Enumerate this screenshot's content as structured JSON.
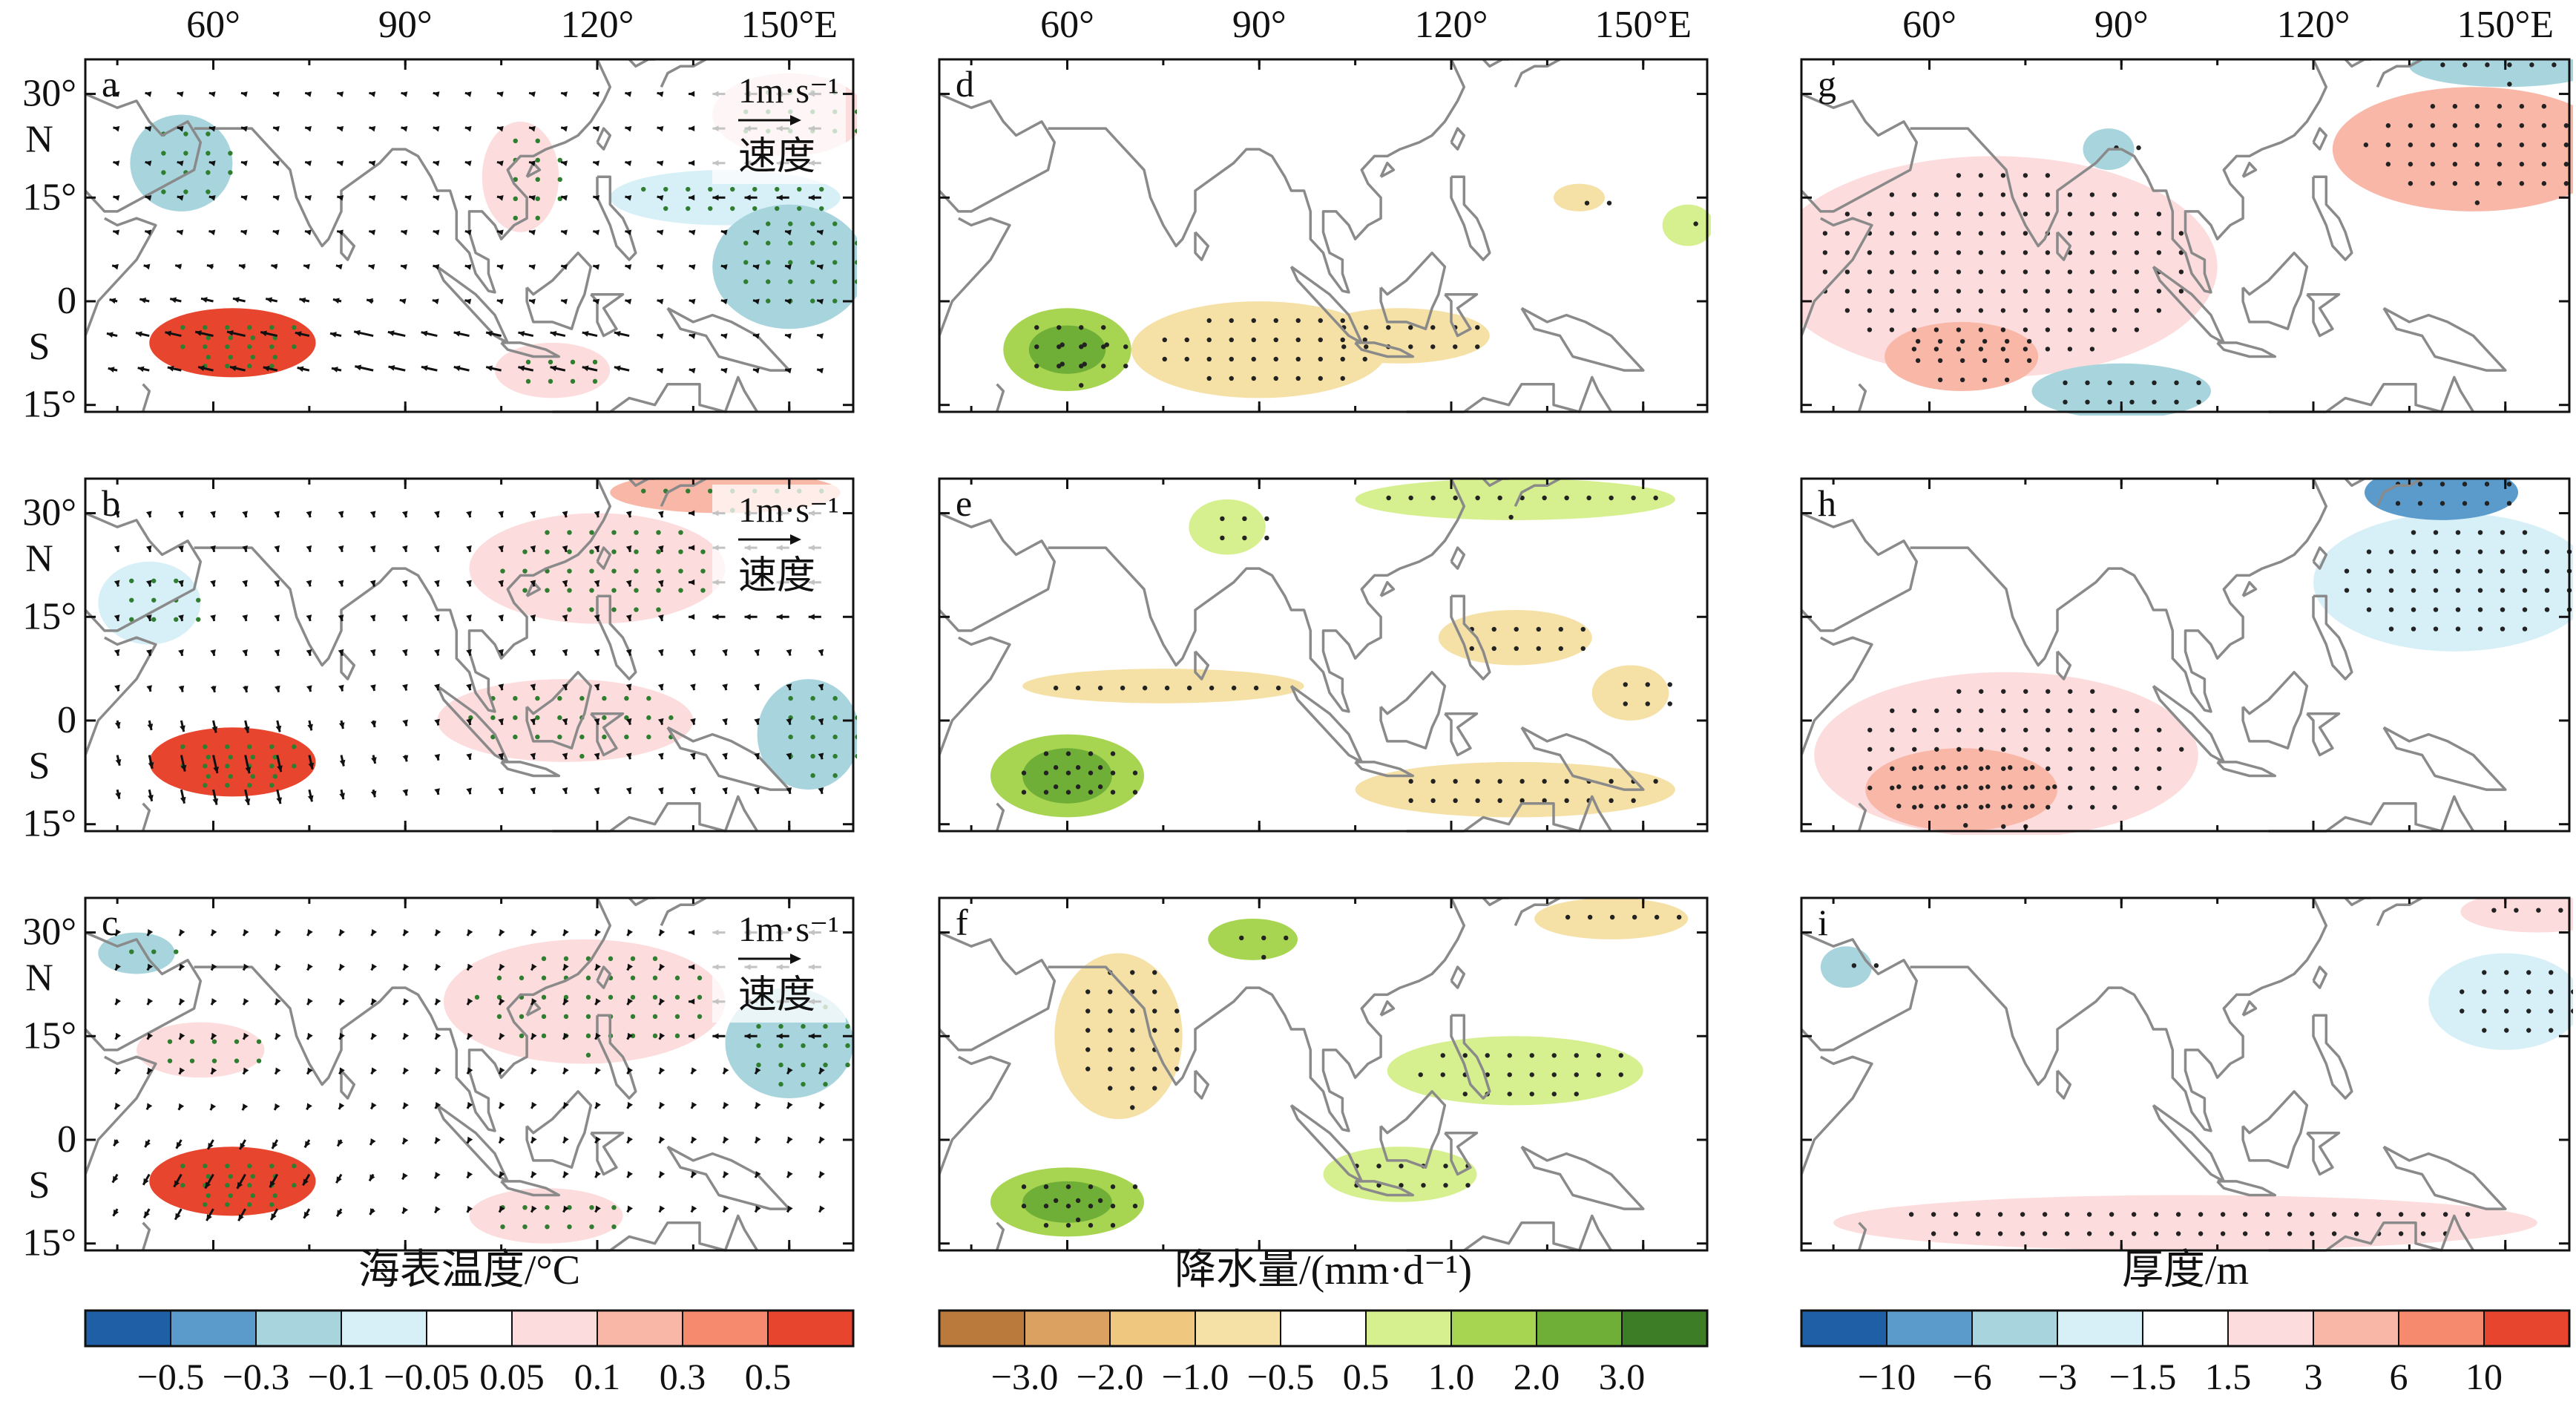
{
  "lon_labels": [
    "60°",
    "90°",
    "120°",
    "150°E"
  ],
  "lat_labels": [
    {
      "text": "30°",
      "hemi": "N"
    },
    {
      "text": "15°",
      "hemi": ""
    },
    {
      "text": "0",
      "hemi": "S"
    },
    {
      "text": "15°",
      "hemi": ""
    }
  ],
  "panels": [
    {
      "id": "a",
      "label": "a",
      "column": "sst",
      "row": 0,
      "reference_vector": {
        "value": "1m·s⁻¹",
        "name": "速度"
      }
    },
    {
      "id": "b",
      "label": "b",
      "column": "sst",
      "row": 1,
      "reference_vector": {
        "value": "1m·s⁻¹",
        "name": "速度"
      }
    },
    {
      "id": "c",
      "label": "c",
      "column": "sst",
      "row": 2,
      "reference_vector": {
        "value": "1m·s⁻¹",
        "name": "速度"
      }
    },
    {
      "id": "d",
      "label": "d",
      "column": "precip",
      "row": 0
    },
    {
      "id": "e",
      "label": "e",
      "column": "precip",
      "row": 1
    },
    {
      "id": "f",
      "label": "f",
      "column": "precip",
      "row": 2
    },
    {
      "id": "g",
      "label": "g",
      "column": "thickness",
      "row": 0
    },
    {
      "id": "h",
      "label": "h",
      "column": "thickness",
      "row": 1
    },
    {
      "id": "i",
      "label": "i",
      "column": "thickness",
      "row": 2
    }
  ],
  "colorbars": [
    {
      "id": "sst",
      "title": "海表温度/°C",
      "colors": [
        "#1f5fa6",
        "#5b9bcb",
        "#a8d5dd",
        "#d7f0f7",
        "#ffffff",
        "#fcdcdc",
        "#f9b7a8",
        "#f68a6e",
        "#e8452f"
      ],
      "tick_labels": [
        "−0.5",
        "−0.3",
        "−0.1",
        "−0.05",
        "0.05",
        "0.1",
        "0.3",
        "0.5"
      ]
    },
    {
      "id": "precip",
      "title": "降水量/(mm·d⁻¹)",
      "colors": [
        "#b97a3c",
        "#dba161",
        "#efc77f",
        "#f5e0a6",
        "#ffffff",
        "#d6ef8f",
        "#a8d551",
        "#6fae37",
        "#3c7d26"
      ],
      "tick_labels": [
        "−3.0",
        "−2.0",
        "−1.0",
        "−0.5",
        "0.5",
        "1.0",
        "2.0",
        "3.0"
      ]
    },
    {
      "id": "thickness",
      "title": "厚度/m",
      "colors": [
        "#1f5fa6",
        "#5b9bcb",
        "#a8d5dd",
        "#d7f0f7",
        "#ffffff",
        "#fcdcdc",
        "#f9b7a8",
        "#f68a6e",
        "#e8452f"
      ],
      "tick_labels": [
        "−10",
        "−6",
        "−3",
        "−1.5",
        "1.5",
        "3",
        "6",
        "10"
      ]
    }
  ],
  "chart_data": {
    "type": "heatmap",
    "projection": "lon-lat map, 40°E–160°E, 16°S–35°N",
    "xlim": [
      40,
      160
    ],
    "ylim": [
      -16,
      35
    ],
    "x_ticks": [
      60,
      90,
      120,
      150
    ],
    "y_ticks": [
      30,
      15,
      0,
      -15
    ],
    "grid": false,
    "fields": {
      "sst": "sea surface temperature anomaly with surface wind vectors",
      "precip": "precipitation anomaly",
      "thickness": "layer thickness anomaly"
    },
    "features": {
      "a": [
        {
          "lon": 63,
          "lat": -6,
          "rx": 13,
          "ry": 5,
          "level": 4
        },
        {
          "lon": 63,
          "lat": -6,
          "rx": 9,
          "ry": 3.5,
          "level": 3
        },
        {
          "lon": 150,
          "lat": 5,
          "rx": 12,
          "ry": 9,
          "level": -2
        },
        {
          "lon": 140,
          "lat": 15,
          "rx": 18,
          "ry": 4,
          "level": -1
        },
        {
          "lon": 55,
          "lat": 20,
          "rx": 8,
          "ry": 7,
          "level": -2
        },
        {
          "lon": 150,
          "lat": 27,
          "rx": 12,
          "ry": 6,
          "level": 1
        },
        {
          "lon": 108,
          "lat": 18,
          "rx": 6,
          "ry": 8,
          "level": 1
        },
        {
          "lon": 113,
          "lat": -10,
          "rx": 9,
          "ry": 4,
          "level": 1
        }
      ],
      "b": [
        {
          "lon": 63,
          "lat": -6,
          "rx": 13,
          "ry": 5,
          "level": 4
        },
        {
          "lon": 63,
          "lat": -6,
          "rx": 9,
          "ry": 3.5,
          "level": 3
        },
        {
          "lon": 120,
          "lat": 22,
          "rx": 20,
          "ry": 8,
          "level": 1
        },
        {
          "lon": 115,
          "lat": 0,
          "rx": 20,
          "ry": 6,
          "level": 1
        },
        {
          "lon": 153,
          "lat": -2,
          "rx": 8,
          "ry": 8,
          "level": -2
        },
        {
          "lon": 50,
          "lat": 17,
          "rx": 8,
          "ry": 6,
          "level": -1
        },
        {
          "lon": 140,
          "lat": 33,
          "rx": 18,
          "ry": 3,
          "level": 2
        }
      ],
      "c": [
        {
          "lon": 63,
          "lat": -6,
          "rx": 13,
          "ry": 5,
          "level": 4
        },
        {
          "lon": 63,
          "lat": -6,
          "rx": 9,
          "ry": 3.5,
          "level": 3
        },
        {
          "lon": 118,
          "lat": 20,
          "rx": 22,
          "ry": 9,
          "level": 1
        },
        {
          "lon": 150,
          "lat": 14,
          "rx": 10,
          "ry": 8,
          "level": -2
        },
        {
          "lon": 112,
          "lat": -11,
          "rx": 12,
          "ry": 4,
          "level": 1
        },
        {
          "lon": 58,
          "lat": 13,
          "rx": 10,
          "ry": 4,
          "level": 1
        },
        {
          "lon": 48,
          "lat": 27,
          "rx": 6,
          "ry": 3,
          "level": -2
        }
      ],
      "d": [
        {
          "lon": 60,
          "lat": -7,
          "rx": 10,
          "ry": 6,
          "level": 2
        },
        {
          "lon": 60,
          "lat": -7,
          "rx": 6,
          "ry": 3.5,
          "level": 3
        },
        {
          "lon": 90,
          "lat": -7,
          "rx": 20,
          "ry": 7,
          "level": -1
        },
        {
          "lon": 112,
          "lat": -5,
          "rx": 14,
          "ry": 4,
          "level": -1
        },
        {
          "lon": 157,
          "lat": 11,
          "rx": 4,
          "ry": 3,
          "level": 1
        },
        {
          "lon": 140,
          "lat": 15,
          "rx": 4,
          "ry": 2,
          "level": -1
        }
      ],
      "e": [
        {
          "lon": 60,
          "lat": -8,
          "rx": 12,
          "ry": 6,
          "level": 2
        },
        {
          "lon": 60,
          "lat": -8,
          "rx": 7,
          "ry": 4,
          "level": 3
        },
        {
          "lon": 75,
          "lat": 5,
          "rx": 22,
          "ry": 2.5,
          "level": -1
        },
        {
          "lon": 130,
          "lat": -10,
          "rx": 25,
          "ry": 4,
          "level": -1
        },
        {
          "lon": 130,
          "lat": 12,
          "rx": 12,
          "ry": 4,
          "level": -1
        },
        {
          "lon": 130,
          "lat": 32,
          "rx": 25,
          "ry": 3,
          "level": 1
        },
        {
          "lon": 85,
          "lat": 28,
          "rx": 6,
          "ry": 4,
          "level": 1
        },
        {
          "lon": 148,
          "lat": 4,
          "rx": 6,
          "ry": 4,
          "level": -1
        }
      ],
      "f": [
        {
          "lon": 60,
          "lat": -9,
          "rx": 12,
          "ry": 5,
          "level": 2
        },
        {
          "lon": 60,
          "lat": -9,
          "rx": 7,
          "ry": 3,
          "level": 3
        },
        {
          "lon": 68,
          "lat": 15,
          "rx": 10,
          "ry": 12,
          "level": -1
        },
        {
          "lon": 130,
          "lat": 10,
          "rx": 20,
          "ry": 5,
          "level": 1
        },
        {
          "lon": 89,
          "lat": 29,
          "rx": 7,
          "ry": 3,
          "level": 2
        },
        {
          "lon": 112,
          "lat": -5,
          "rx": 12,
          "ry": 4,
          "level": 1
        },
        {
          "lon": 145,
          "lat": 32,
          "rx": 12,
          "ry": 3,
          "level": -1
        }
      ],
      "g": [
        {
          "lon": 70,
          "lat": 5,
          "rx": 35,
          "ry": 16,
          "level": 1
        },
        {
          "lon": 65,
          "lat": -8,
          "rx": 12,
          "ry": 5,
          "level": 2
        },
        {
          "lon": 90,
          "lat": -13,
          "rx": 14,
          "ry": 4,
          "level": -2
        },
        {
          "lon": 145,
          "lat": 22,
          "rx": 22,
          "ry": 9,
          "level": 2
        },
        {
          "lon": 150,
          "lat": 34,
          "rx": 15,
          "ry": 3,
          "level": -2
        },
        {
          "lon": 88,
          "lat": 22,
          "rx": 4,
          "ry": 3,
          "level": -2
        }
      ],
      "h": [
        {
          "lon": 72,
          "lat": -5,
          "rx": 30,
          "ry": 12,
          "level": 1
        },
        {
          "lon": 65,
          "lat": -10,
          "rx": 15,
          "ry": 6,
          "level": 2
        },
        {
          "lon": 142,
          "lat": 20,
          "rx": 22,
          "ry": 10,
          "level": -1
        },
        {
          "lon": 140,
          "lat": 33,
          "rx": 12,
          "ry": 4,
          "level": -3
        }
      ],
      "i": [
        {
          "lon": 100,
          "lat": -12,
          "rx": 55,
          "ry": 4,
          "level": 1
        },
        {
          "lon": 150,
          "lat": 20,
          "rx": 12,
          "ry": 7,
          "level": -1
        },
        {
          "lon": 155,
          "lat": 33,
          "rx": 12,
          "ry": 3,
          "level": 1
        },
        {
          "lon": 47,
          "lat": 25,
          "rx": 4,
          "ry": 3,
          "level": -2
        }
      ]
    },
    "wind_vectors": {
      "a": {
        "u0": -0.9,
        "v0": 0.2,
        "region": "southern Indian Ocean and tropical Pacific easterlies"
      },
      "b": {
        "u0": 0.2,
        "v0": -0.9,
        "region": "northerly flow over southwestern Indian Ocean"
      },
      "c": {
        "u0": -0.4,
        "v0": -0.7,
        "region": "westward/southwestward flow"
      }
    }
  }
}
